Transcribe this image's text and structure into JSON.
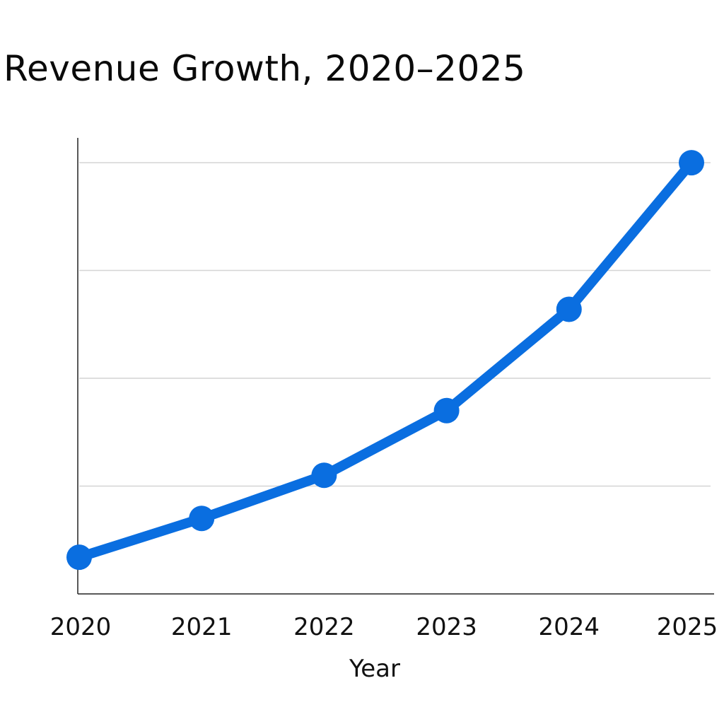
{
  "chart_data": {
    "type": "line",
    "title": "Revenue Growth, 2020–2025",
    "xlabel": "Year",
    "ylabel": "",
    "categories": [
      "2020",
      "2021",
      "2022",
      "2023",
      "2024",
      "2025"
    ],
    "series": [
      {
        "values": [
          0.34,
          0.7,
          1.1,
          1.7,
          2.64,
          4.0
        ]
      }
    ],
    "ylim": [
      0,
      4.23
    ],
    "y_tick_labels_shown": false,
    "grid": "horizontal",
    "gridline_values": [
      1,
      2,
      3,
      4
    ],
    "colors": {
      "line": "#0a6ee0",
      "grid": "#d4d4d4",
      "axis": "#222222"
    }
  }
}
